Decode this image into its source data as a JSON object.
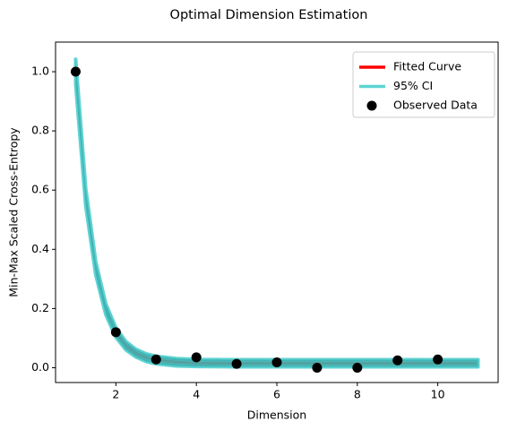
{
  "chart_data": {
    "type": "line",
    "title": "Optimal Dimension Estimation",
    "x_label": "Dimension",
    "y_label": "Min-Max Scaled Cross-Entropy",
    "xlim": [
      0.5,
      11.5
    ],
    "ylim": [
      -0.05,
      1.1
    ],
    "xticks": [
      2,
      4,
      6,
      8,
      10
    ],
    "yticks": [
      {
        "value": 0,
        "label": "0.0"
      },
      {
        "value": 0.2,
        "label": "0.2"
      },
      {
        "value": 0.4,
        "label": "0.4"
      },
      {
        "value": 0.6,
        "label": "0.6"
      },
      {
        "value": 0.8,
        "label": "0.8"
      },
      {
        "value": 1,
        "label": "1.0"
      }
    ],
    "grid": false,
    "legend": "upper right",
    "series": [
      {
        "name": "Fitted Curve",
        "kind": "line",
        "color": "#ff0000",
        "x": [
          1,
          1.25,
          1.5,
          1.75,
          2,
          2.25,
          2.5,
          2.75,
          3,
          3.5,
          4,
          5,
          6,
          7,
          8,
          9,
          10,
          11
        ],
        "values": [
          1.0,
          0.576,
          0.335,
          0.197,
          0.119,
          0.074,
          0.049,
          0.034,
          0.026,
          0.019,
          0.016,
          0.015,
          0.015,
          0.015,
          0.015,
          0.015,
          0.015,
          0.015
        ]
      },
      {
        "name": "95% CI",
        "kind": "band",
        "color": "#5ed3d3",
        "x": [
          1,
          1.25,
          1.5,
          1.75,
          2,
          2.25,
          2.5,
          2.75,
          3,
          3.5,
          4,
          5,
          6,
          7,
          8,
          9,
          10,
          11
        ],
        "upper": [
          1.042,
          0.605,
          0.357,
          0.215,
          0.135,
          0.088,
          0.062,
          0.047,
          0.039,
          0.031,
          0.028,
          0.027,
          0.027,
          0.027,
          0.027,
          0.027,
          0.027,
          0.027
        ],
        "lower": [
          0.958,
          0.547,
          0.313,
          0.179,
          0.103,
          0.06,
          0.036,
          0.021,
          0.013,
          0.006,
          0.004,
          0.003,
          0.003,
          0.003,
          0.003,
          0.003,
          0.003,
          0.003
        ]
      },
      {
        "name": "Observed Data",
        "kind": "scatter",
        "color": "#000000",
        "x": [
          1,
          2,
          3,
          4,
          5,
          6,
          7,
          8,
          9,
          10
        ],
        "values": [
          1.0,
          0.12,
          0.028,
          0.035,
          0.013,
          0.018,
          0.0,
          0.0,
          0.025,
          0.028
        ]
      }
    ]
  }
}
